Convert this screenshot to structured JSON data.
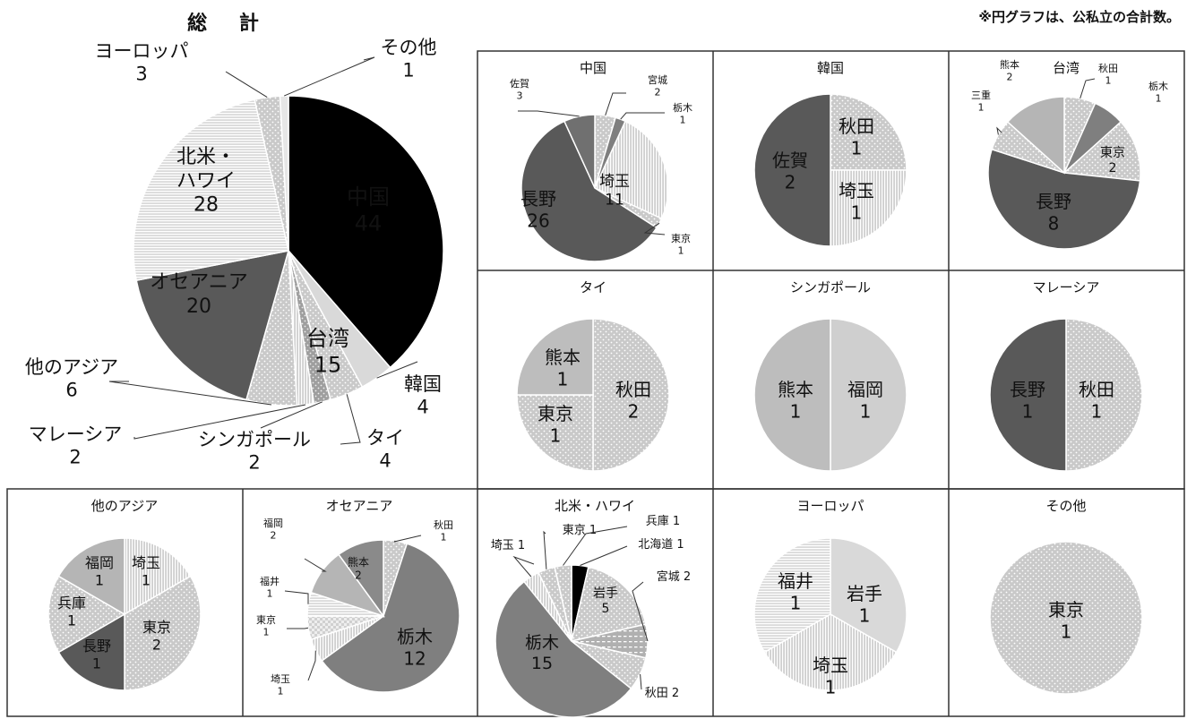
{
  "note": "※円グラフは、公私立の合計数。",
  "chart_data": [
    {
      "type": "pie",
      "title": "総 計",
      "categories": [
        "中国",
        "韓国",
        "タイ",
        "シンガポール",
        "マレーシア",
        "他のアジア",
        "オセアニア",
        "北米・ハワイ",
        "ヨーロッパ",
        "その他"
      ],
      "values": [
        44,
        4,
        4,
        2,
        2,
        6,
        20,
        28,
        3,
        1
      ],
      "labels": [
        {
          "name": "中国",
          "value": "44"
        },
        {
          "name": "韓国",
          "value": "4"
        },
        {
          "name": "タイ",
          "value": "4"
        },
        {
          "name": "シンガポール",
          "value": "2"
        },
        {
          "name": "マレーシア",
          "value": "2"
        },
        {
          "name": "他のアジア",
          "value": "6"
        },
        {
          "name": "オセアニア",
          "value": "20"
        },
        {
          "name": "北米・\nハワイ",
          "value": "28"
        },
        {
          "name": "ヨーロッパ",
          "value": "3"
        },
        {
          "name": "その他",
          "value": "1"
        }
      ]
    },
    {
      "type": "pie",
      "title": "中国",
      "categories": [
        "宮城",
        "栃木",
        "埼玉",
        "東京",
        "長野",
        "佐賀"
      ],
      "values": [
        2,
        1,
        11,
        1,
        26,
        3
      ]
    },
    {
      "type": "pie",
      "title": "韓国",
      "categories": [
        "秋田",
        "埼玉",
        "佐賀"
      ],
      "values": [
        1,
        1,
        2
      ]
    },
    {
      "type": "pie",
      "title": "台湾",
      "categories": [
        "秋田",
        "栃木",
        "東京",
        "長野",
        "三重",
        "熊本"
      ],
      "values": [
        1,
        1,
        2,
        8,
        1,
        2
      ]
    },
    {
      "type": "pie",
      "title": "タイ",
      "categories": [
        "秋田",
        "東京",
        "熊本"
      ],
      "values": [
        2,
        1,
        1
      ]
    },
    {
      "type": "pie",
      "title": "シンガポール",
      "categories": [
        "福岡",
        "熊本"
      ],
      "values": [
        1,
        1
      ]
    },
    {
      "type": "pie",
      "title": "マレーシア",
      "categories": [
        "秋田",
        "長野"
      ],
      "values": [
        1,
        1
      ]
    },
    {
      "type": "pie",
      "title": "他のアジア",
      "categories": [
        "埼玉",
        "東京",
        "長野",
        "兵庫",
        "福岡"
      ],
      "values": [
        1,
        2,
        1,
        1,
        1
      ]
    },
    {
      "type": "pie",
      "title": "オセアニア",
      "categories": [
        "秋田",
        "栃木",
        "埼玉",
        "東京",
        "福井",
        "福岡",
        "熊本"
      ],
      "values": [
        1,
        12,
        1,
        1,
        1,
        2,
        2
      ]
    },
    {
      "type": "pie",
      "title": "北米・ハワイ",
      "categories": [
        "北海道",
        "岩手",
        "宮城",
        "秋田",
        "栃木",
        "埼玉",
        "東京",
        "兵庫"
      ],
      "values": [
        1,
        5,
        2,
        2,
        15,
        1,
        1,
        1
      ]
    },
    {
      "type": "pie",
      "title": "ヨーロッパ",
      "categories": [
        "岩手",
        "埼玉",
        "福井"
      ],
      "values": [
        1,
        1,
        1
      ]
    },
    {
      "type": "pie",
      "title": "その他",
      "categories": [
        "東京"
      ],
      "values": [
        1
      ]
    }
  ]
}
